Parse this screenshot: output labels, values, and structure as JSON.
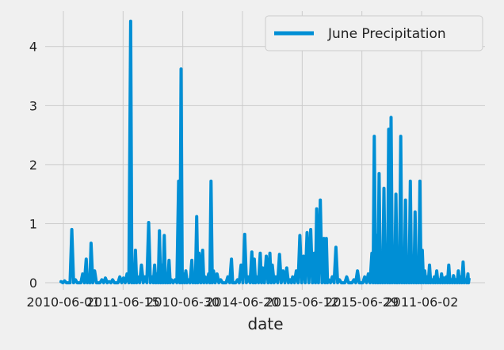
{
  "chart_data": {
    "type": "line",
    "title": "",
    "xlabel": "date",
    "ylabel": "",
    "ylim": [
      -0.12,
      4.6
    ],
    "yticks": [
      0,
      1,
      2,
      3,
      4
    ],
    "grid": true,
    "legend_position": "top-right",
    "colors": {
      "series": "#008fd5",
      "background": "#f0f0f0",
      "grid": "#cbcbcb"
    },
    "xtick_labels": [
      "2010-06-01",
      "2011-06-15",
      "2010-06-30",
      "2014-06-20",
      "2015-06-12",
      "2015-06-29",
      "2011-06-02"
    ],
    "series": [
      {
        "name": "June Precipitation",
        "x_index_range": [
          0,
          1700
        ],
        "peaks": [
          [
            0,
            0.02
          ],
          [
            15,
            0.03
          ],
          [
            30,
            0.0
          ],
          [
            45,
            0.9
          ],
          [
            60,
            0.05
          ],
          [
            75,
            0.0
          ],
          [
            90,
            0.15
          ],
          [
            105,
            0.4
          ],
          [
            115,
            0.02
          ],
          [
            125,
            0.67
          ],
          [
            140,
            0.2
          ],
          [
            155,
            0.0
          ],
          [
            170,
            0.05
          ],
          [
            185,
            0.08
          ],
          [
            200,
            0.02
          ],
          [
            215,
            0.05
          ],
          [
            230,
            0.0
          ],
          [
            245,
            0.1
          ],
          [
            260,
            0.08
          ],
          [
            275,
            0.15
          ],
          [
            290,
            4.43
          ],
          [
            300,
            0.1
          ],
          [
            310,
            0.55
          ],
          [
            320,
            0.1
          ],
          [
            335,
            0.3
          ],
          [
            350,
            0.1
          ],
          [
            365,
            1.02
          ],
          [
            380,
            0.1
          ],
          [
            390,
            0.3
          ],
          [
            400,
            0.15
          ],
          [
            410,
            0.88
          ],
          [
            420,
            0.3
          ],
          [
            430,
            0.8
          ],
          [
            440,
            0.1
          ],
          [
            450,
            0.38
          ],
          [
            460,
            0.05
          ],
          [
            475,
            0.05
          ],
          [
            490,
            1.72
          ],
          [
            500,
            3.62
          ],
          [
            510,
            0.15
          ],
          [
            520,
            0.2
          ],
          [
            530,
            0.05
          ],
          [
            545,
            0.38
          ],
          [
            555,
            0.12
          ],
          [
            565,
            1.12
          ],
          [
            575,
            0.5
          ],
          [
            590,
            0.55
          ],
          [
            600,
            0.1
          ],
          [
            615,
            0.15
          ],
          [
            625,
            1.72
          ],
          [
            635,
            0.2
          ],
          [
            650,
            0.15
          ],
          [
            665,
            0.05
          ],
          [
            680,
            0.0
          ],
          [
            695,
            0.1
          ],
          [
            710,
            0.4
          ],
          [
            720,
            0.0
          ],
          [
            735,
            0.05
          ],
          [
            750,
            0.3
          ],
          [
            765,
            0.82
          ],
          [
            780,
            0.1
          ],
          [
            795,
            0.52
          ],
          [
            805,
            0.4
          ],
          [
            815,
            0.1
          ],
          [
            830,
            0.5
          ],
          [
            840,
            0.25
          ],
          [
            855,
            0.45
          ],
          [
            870,
            0.5
          ],
          [
            880,
            0.3
          ],
          [
            895,
            0.1
          ],
          [
            910,
            0.48
          ],
          [
            925,
            0.2
          ],
          [
            940,
            0.25
          ],
          [
            955,
            0.05
          ],
          [
            965,
            0.1
          ],
          [
            980,
            0.2
          ],
          [
            995,
            0.8
          ],
          [
            1010,
            0.45
          ],
          [
            1025,
            0.85
          ],
          [
            1040,
            0.9
          ],
          [
            1055,
            0.5
          ],
          [
            1065,
            1.25
          ],
          [
            1080,
            1.4
          ],
          [
            1095,
            0.75
          ],
          [
            1105,
            0.75
          ],
          [
            1115,
            0.05
          ],
          [
            1130,
            0.1
          ],
          [
            1145,
            0.6
          ],
          [
            1160,
            0.05
          ],
          [
            1175,
            0.0
          ],
          [
            1190,
            0.1
          ],
          [
            1205,
            0.0
          ],
          [
            1220,
            0.05
          ],
          [
            1235,
            0.2
          ],
          [
            1250,
            0.0
          ],
          [
            1265,
            0.1
          ],
          [
            1280,
            0.15
          ],
          [
            1295,
            0.5
          ],
          [
            1305,
            2.48
          ],
          [
            1315,
            0.8
          ],
          [
            1325,
            1.85
          ],
          [
            1335,
            0.3
          ],
          [
            1345,
            1.6
          ],
          [
            1355,
            0.5
          ],
          [
            1365,
            2.6
          ],
          [
            1375,
            2.8
          ],
          [
            1385,
            0.5
          ],
          [
            1395,
            1.5
          ],
          [
            1405,
            0.3
          ],
          [
            1415,
            2.48
          ],
          [
            1425,
            0.5
          ],
          [
            1435,
            1.4
          ],
          [
            1445,
            0.3
          ],
          [
            1455,
            1.72
          ],
          [
            1465,
            0.2
          ],
          [
            1475,
            1.2
          ],
          [
            1485,
            0.1
          ],
          [
            1495,
            1.72
          ],
          [
            1505,
            0.55
          ],
          [
            1515,
            0.2
          ],
          [
            1525,
            0.1
          ],
          [
            1535,
            0.3
          ],
          [
            1545,
            0.05
          ],
          [
            1555,
            0.1
          ],
          [
            1565,
            0.2
          ],
          [
            1575,
            0.05
          ],
          [
            1585,
            0.15
          ],
          [
            1595,
            0.08
          ],
          [
            1605,
            0.1
          ],
          [
            1615,
            0.3
          ],
          [
            1625,
            0.05
          ],
          [
            1635,
            0.12
          ],
          [
            1645,
            0.05
          ],
          [
            1655,
            0.2
          ],
          [
            1665,
            0.1
          ],
          [
            1675,
            0.35
          ],
          [
            1685,
            0.05
          ],
          [
            1695,
            0.15
          ],
          [
            1700,
            0.08
          ]
        ]
      }
    ]
  }
}
